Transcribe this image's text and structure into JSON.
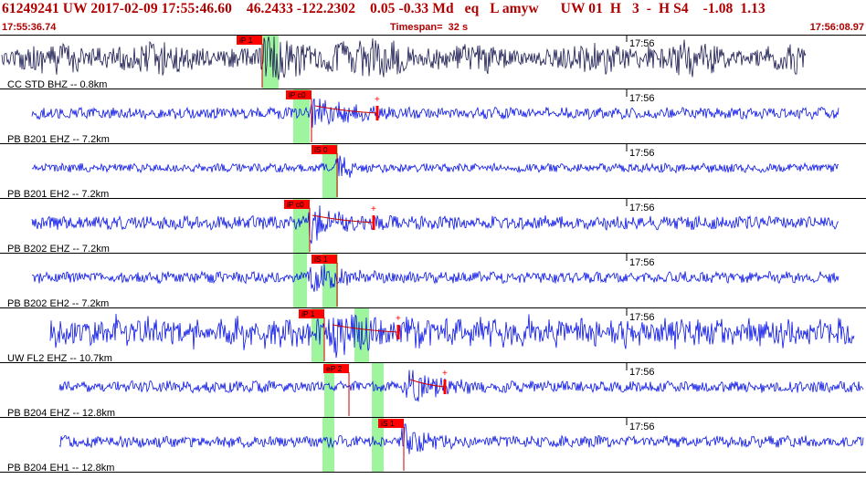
{
  "header": {
    "title": "61249241 UW 2017-02-09 17:55:46.60    46.2433 -122.2302    0.05 -0.33 Md   eq   L amyw      UW 01  H   3  -  H S4    -1.08  1.13",
    "start_time": "17:55:36.74",
    "timespan": "Timespan=  32 s",
    "end_time": "17:56:08.97"
  },
  "colors": {
    "header_text": "#b00000",
    "trace_first": "#1a1a50",
    "trace": "#0a14e6",
    "pick_label_bg": "#ff0000",
    "pick_window": "#9ef59e",
    "divider": "#000000"
  },
  "time_marker": "17:56",
  "panels": [
    {
      "label": "CC STD BHZ -- 0.8km",
      "trace_color": "#1a1a50",
      "picks": [
        {
          "label": "iP 1",
          "phase": "P"
        }
      ],
      "duration_marker": false,
      "amplitude": 1.0
    },
    {
      "label": "PB B201 EHZ -- 7.2km",
      "trace_color": "#0a14e6",
      "picks": [
        {
          "label": "iP c0",
          "phase": "P"
        }
      ],
      "duration_marker": true,
      "amplitude": 0.6
    },
    {
      "label": "PB B201 EH2 -- 7.2km",
      "trace_color": "#0a14e6",
      "picks": [
        {
          "label": "iS 0",
          "phase": "S"
        }
      ],
      "duration_marker": false,
      "amplitude": 0.4
    },
    {
      "label": "PB B202 EHZ -- 7.2km",
      "trace_color": "#0a14e6",
      "picks": [
        {
          "label": "iP c0",
          "phase": "P"
        }
      ],
      "duration_marker": true,
      "amplitude": 0.8
    },
    {
      "label": "PB B202 EH2 -- 7.2km",
      "trace_color": "#0a14e6",
      "picks": [
        {
          "label": "iS 1",
          "phase": "S"
        }
      ],
      "duration_marker": false,
      "amplitude": 0.6
    },
    {
      "label": "UW FL2 EHZ -- 10.7km",
      "trace_color": "#0a14e6",
      "picks": [
        {
          "label": "iP 1",
          "phase": "P"
        }
      ],
      "duration_marker": true,
      "amplitude": 1.0
    },
    {
      "label": "PB B204 EHZ -- 12.8km",
      "trace_color": "#0a14e6",
      "picks": [
        {
          "label": "eP 2",
          "phase": "P"
        }
      ],
      "duration_marker": true,
      "amplitude": 0.6
    },
    {
      "label": "PB B204 EH1 -- 12.8km",
      "trace_color": "#0a14e6",
      "picks": [
        {
          "label": "iS 1",
          "phase": "S"
        }
      ],
      "duration_marker": false,
      "amplitude": 0.6
    }
  ]
}
